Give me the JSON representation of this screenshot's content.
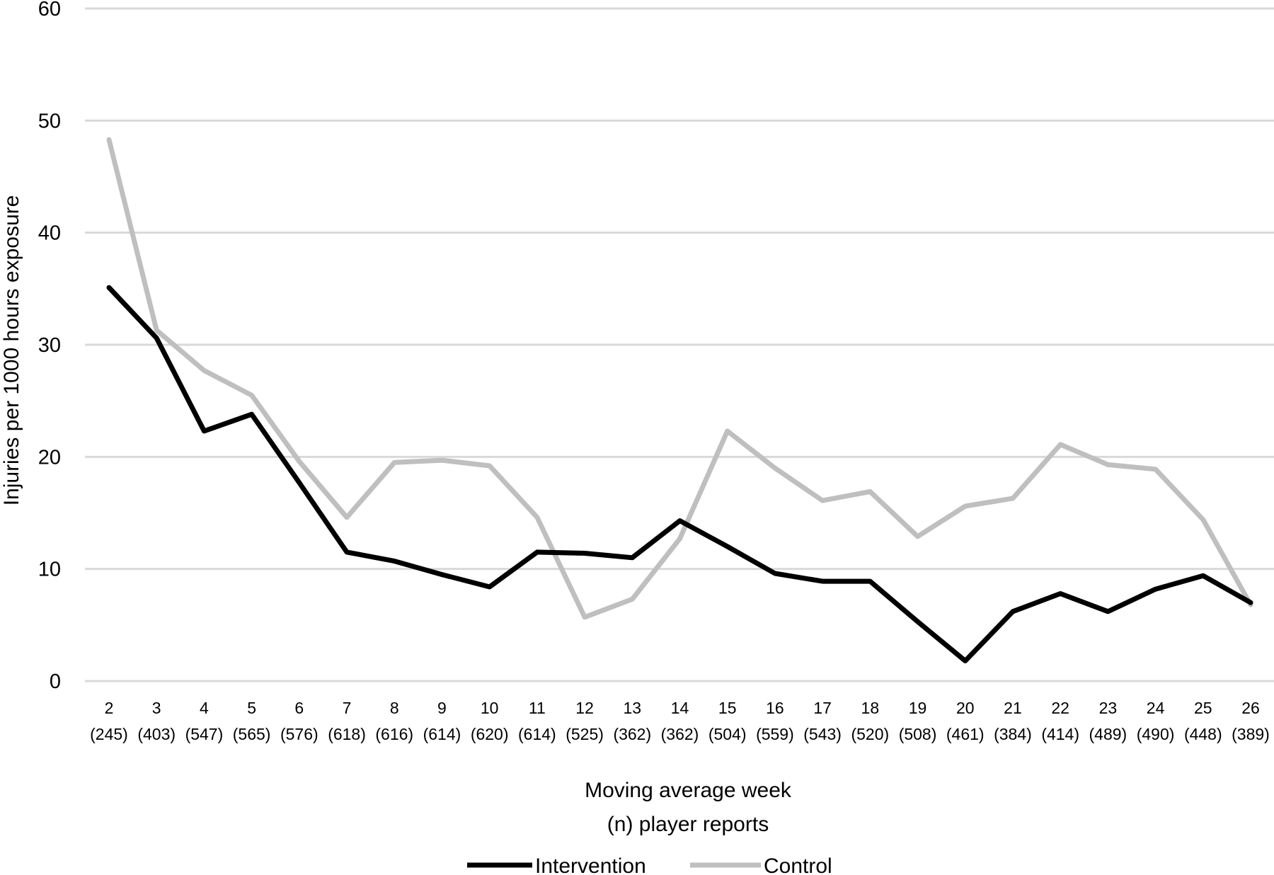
{
  "chart_data": {
    "type": "line",
    "title": "",
    "ylabel": "Injuries per 1000 hours exposure",
    "xlabel": "Moving average week",
    "xlabel_line2": "(n) player reports",
    "ylim": [
      0,
      60
    ],
    "yticks": [
      0,
      10,
      20,
      30,
      40,
      50,
      60
    ],
    "grid": true,
    "legend_position": "bottom",
    "categories": [
      "2",
      "3",
      "4",
      "5",
      "6",
      "7",
      "8",
      "9",
      "10",
      "11",
      "12",
      "13",
      "14",
      "15",
      "16",
      "17",
      "18",
      "19",
      "20",
      "21",
      "22",
      "23",
      "24",
      "25",
      "26"
    ],
    "category_counts": [
      "(245)",
      "(403)",
      "(547)",
      "(565)",
      "(576)",
      "(618)",
      "(616)",
      "(614)",
      "(620)",
      "(614)",
      "(525)",
      "(362)",
      "(362)",
      "(504)",
      "(559)",
      "(543)",
      "(520)",
      "(508)",
      "(461)",
      "(384)",
      "(414)",
      "(489)",
      "(490)",
      "(448)",
      "(389)"
    ],
    "series": [
      {
        "name": "Intervention",
        "color": "#000000",
        "values": [
          35.1,
          30.6,
          22.3,
          23.8,
          17.7,
          11.5,
          10.7,
          9.5,
          8.4,
          11.5,
          11.4,
          11.0,
          14.3,
          12.0,
          9.6,
          8.9,
          8.9,
          5.3,
          1.8,
          6.2,
          7.8,
          6.2,
          8.2,
          9.4,
          7.0
        ]
      },
      {
        "name": "Control",
        "color": "#bfbfbf",
        "values": [
          48.3,
          31.3,
          27.7,
          25.5,
          19.6,
          14.6,
          19.5,
          19.7,
          19.2,
          14.6,
          5.7,
          7.3,
          12.7,
          22.3,
          19.0,
          16.1,
          16.9,
          12.9,
          15.6,
          16.3,
          21.1,
          19.3,
          18.9,
          14.4,
          6.8
        ]
      }
    ]
  }
}
